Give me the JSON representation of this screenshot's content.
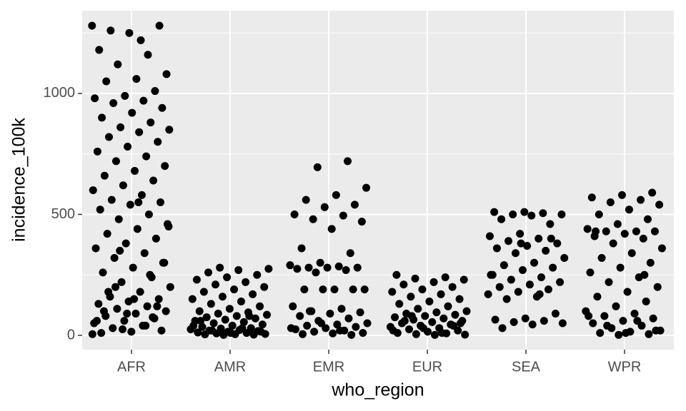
{
  "chart_data": {
    "type": "strip",
    "x_label": "who_region",
    "y_label": "incidence_100k",
    "categories": [
      "AFR",
      "AMR",
      "EMR",
      "EUR",
      "SEA",
      "WPR"
    ],
    "values": [
      [
        1280,
        1220,
        1260,
        1280,
        1250,
        1180,
        1160,
        1120,
        1080,
        1060,
        1050,
        1010,
        990,
        980,
        970,
        960,
        940,
        920,
        900,
        880,
        860,
        850,
        840,
        820,
        800,
        780,
        760,
        740,
        720,
        700,
        680,
        660,
        640,
        620,
        600,
        580,
        560,
        550,
        540,
        520,
        500,
        480,
        460,
        440,
        420,
        400,
        380,
        360,
        340,
        320,
        300,
        280,
        260,
        240,
        220,
        200,
        180,
        160,
        150,
        140,
        130,
        120,
        110,
        100,
        90,
        80,
        70,
        60,
        50,
        40,
        30,
        20,
        15,
        10,
        250,
        350,
        450,
        550,
        180,
        120,
        90,
        60,
        40,
        200,
        300,
        150,
        100,
        75,
        25,
        5
      ],
      [
        280,
        275,
        270,
        260,
        250,
        240,
        230,
        220,
        210,
        200,
        190,
        180,
        170,
        160,
        150,
        140,
        130,
        120,
        110,
        100,
        95,
        90,
        85,
        80,
        75,
        70,
        65,
        60,
        55,
        50,
        45,
        40,
        35,
        30,
        28,
        25,
        22,
        20,
        18,
        15,
        12,
        10,
        8,
        6,
        5,
        4,
        3,
        2,
        40,
        30,
        20,
        15,
        10,
        60,
        80
      ],
      [
        720,
        695,
        610,
        580,
        560,
        540,
        530,
        500,
        495,
        480,
        470,
        440,
        360,
        340,
        300,
        290,
        285,
        280,
        280,
        280,
        275,
        270,
        260,
        190,
        190,
        190,
        190,
        190,
        120,
        110,
        100,
        95,
        90,
        80,
        70,
        60,
        50,
        45,
        40,
        35,
        30,
        25,
        20,
        15,
        10,
        8,
        5,
        2,
        50,
        30,
        20,
        100
      ],
      [
        250,
        240,
        235,
        230,
        220,
        210,
        200,
        190,
        180,
        170,
        160,
        150,
        140,
        130,
        120,
        110,
        100,
        95,
        90,
        85,
        80,
        75,
        70,
        65,
        60,
        55,
        50,
        45,
        40,
        35,
        30,
        25,
        20,
        15,
        10,
        8,
        5,
        3,
        2,
        60,
        40,
        30,
        20,
        10,
        80,
        50
      ],
      [
        510,
        510,
        505,
        500,
        500,
        495,
        480,
        460,
        420,
        410,
        400,
        390,
        380,
        370,
        360,
        350,
        340,
        320,
        300,
        290,
        280,
        270,
        250,
        240,
        230,
        220,
        210,
        200,
        190,
        180,
        170,
        160,
        150,
        90,
        70,
        65,
        60,
        55,
        50,
        45,
        30,
        400,
        380,
        250,
        170
      ],
      [
        590,
        580,
        570,
        560,
        550,
        540,
        520,
        500,
        480,
        460,
        440,
        430,
        430,
        430,
        420,
        410,
        400,
        380,
        360,
        340,
        320,
        300,
        280,
        260,
        240,
        220,
        200,
        180,
        160,
        140,
        120,
        100,
        90,
        80,
        70,
        60,
        50,
        40,
        30,
        20,
        15,
        10,
        5,
        2,
        80,
        60,
        40,
        20,
        10,
        430,
        250
      ]
    ],
    "color": "#000000",
    "ylim": [
      -59,
      1342
    ],
    "yticks": [
      0,
      500,
      1000
    ],
    "minor_yticks": [
      250,
      750,
      1250
    ],
    "grid": true
  }
}
